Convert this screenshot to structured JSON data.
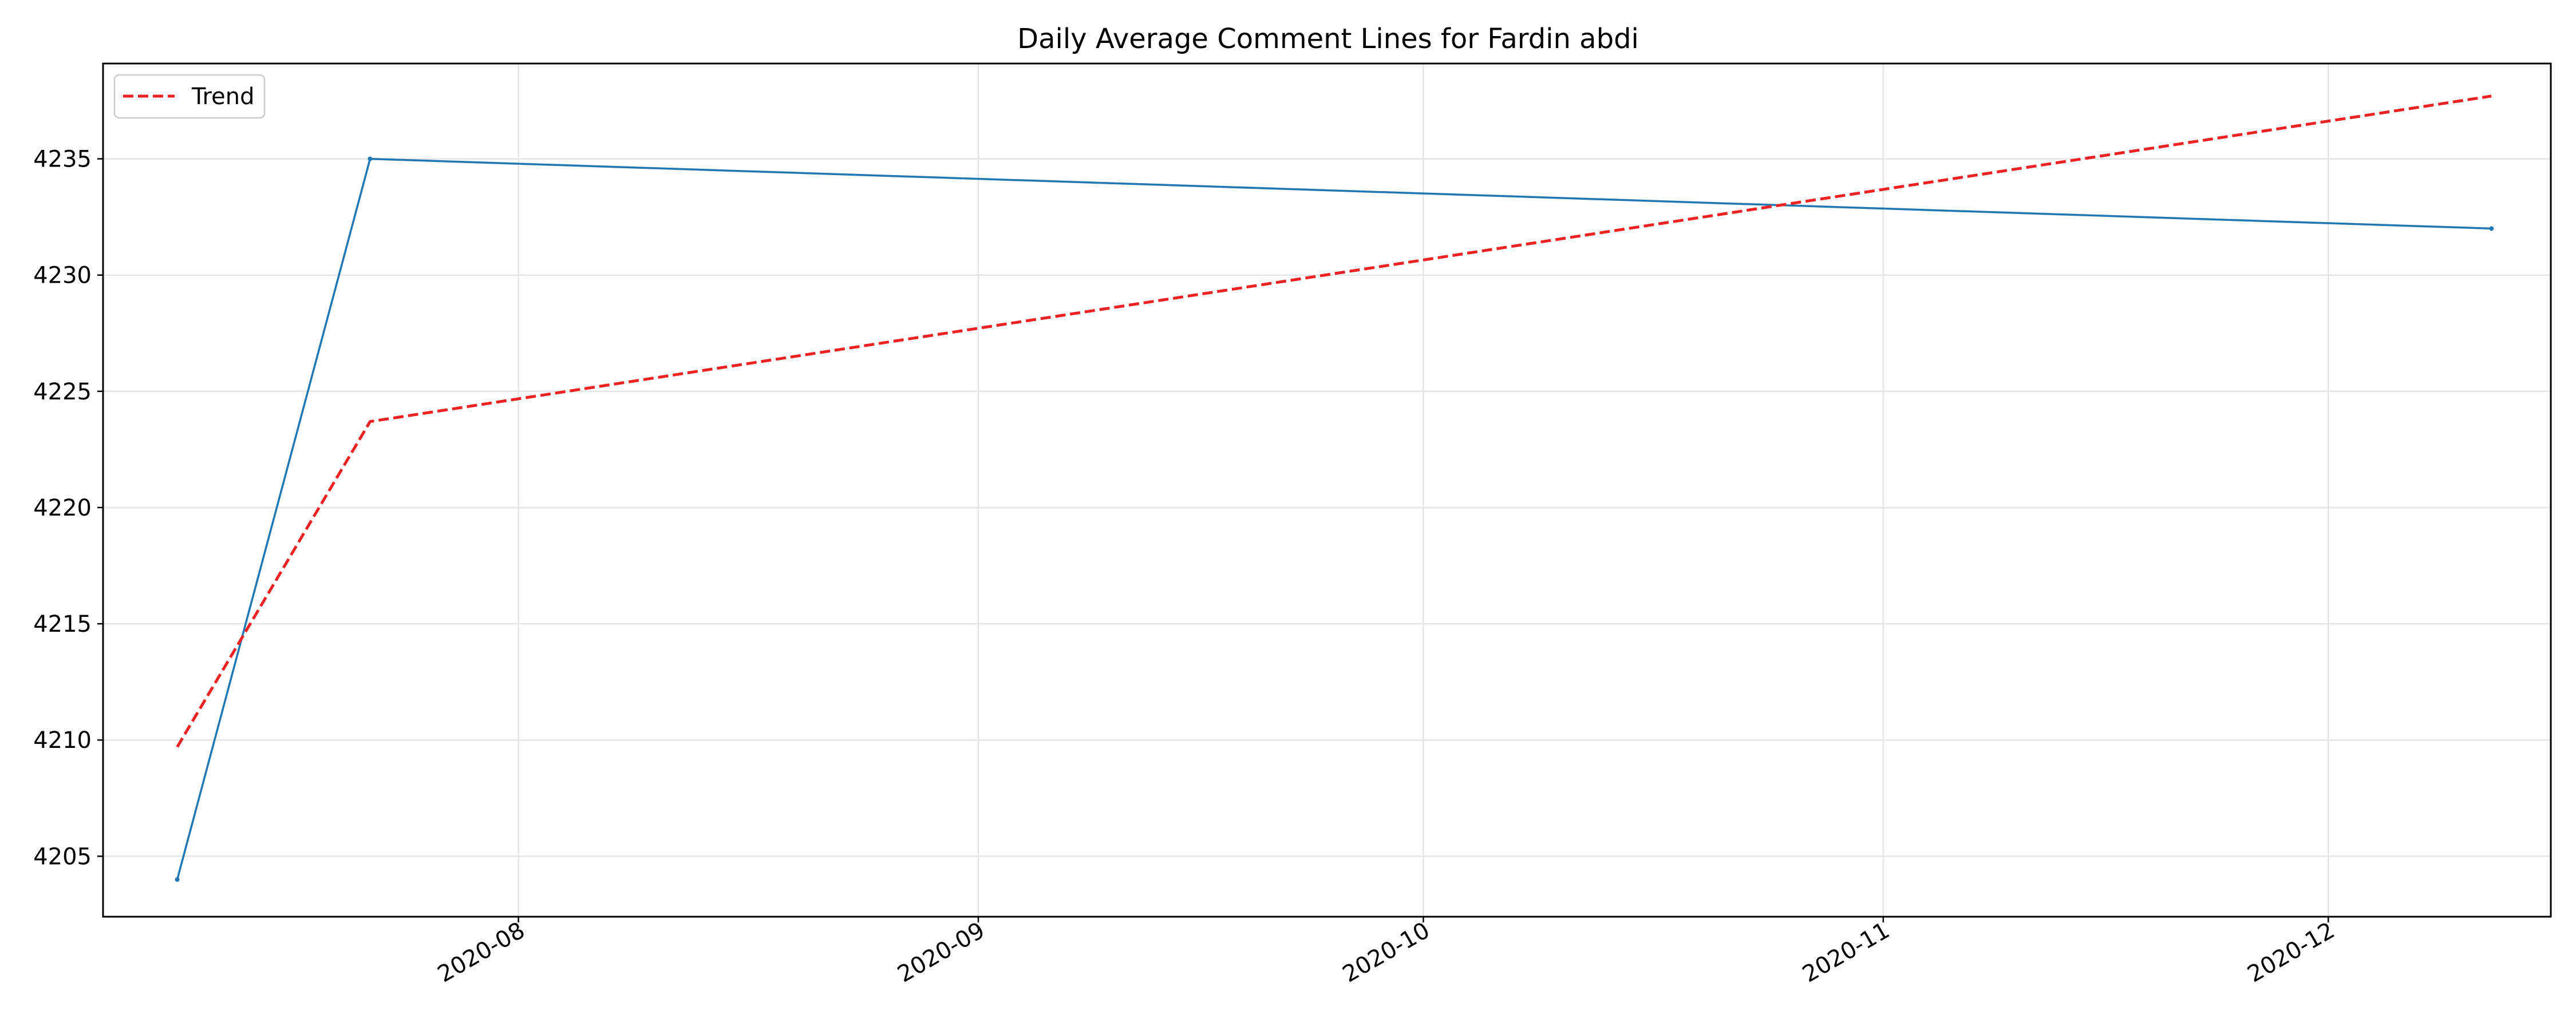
{
  "chart_data": {
    "type": "line",
    "title": "Daily Average Comment Lines for Fardin abdi",
    "xlabel": "",
    "ylabel": "",
    "x_type": "date",
    "xlim": [
      "2020-07-04",
      "2020-12-16"
    ],
    "ylim": [
      4202.4,
      4239.1
    ],
    "x_ticks": [
      "2020-08-01",
      "2020-09-01",
      "2020-10-01",
      "2020-11-01",
      "2020-12-01"
    ],
    "x_tick_labels": [
      "2020-08",
      "2020-09",
      "2020-10",
      "2020-11",
      "2020-12"
    ],
    "y_ticks": [
      4205,
      4210,
      4215,
      4220,
      4225,
      4230,
      4235
    ],
    "grid": true,
    "legend": {
      "placement": "top-left",
      "entries": [
        "Trend"
      ]
    },
    "series": [
      {
        "color": "#1f77b4",
        "style": "solid",
        "points": [
          {
            "x": "2020-07-09",
            "y": 4204
          },
          {
            "x": "2020-07-22",
            "y": 4235
          },
          {
            "x": "2020-12-12",
            "y": 4232
          }
        ]
      },
      {
        "name": "Trend",
        "color": "#ee2222",
        "style": "dashed",
        "points": [
          {
            "x": "2020-07-09",
            "y": 4209.7
          },
          {
            "x": "2020-07-22",
            "y": 4223.7
          },
          {
            "x": "2020-12-12",
            "y": 4237.7
          }
        ]
      }
    ]
  }
}
